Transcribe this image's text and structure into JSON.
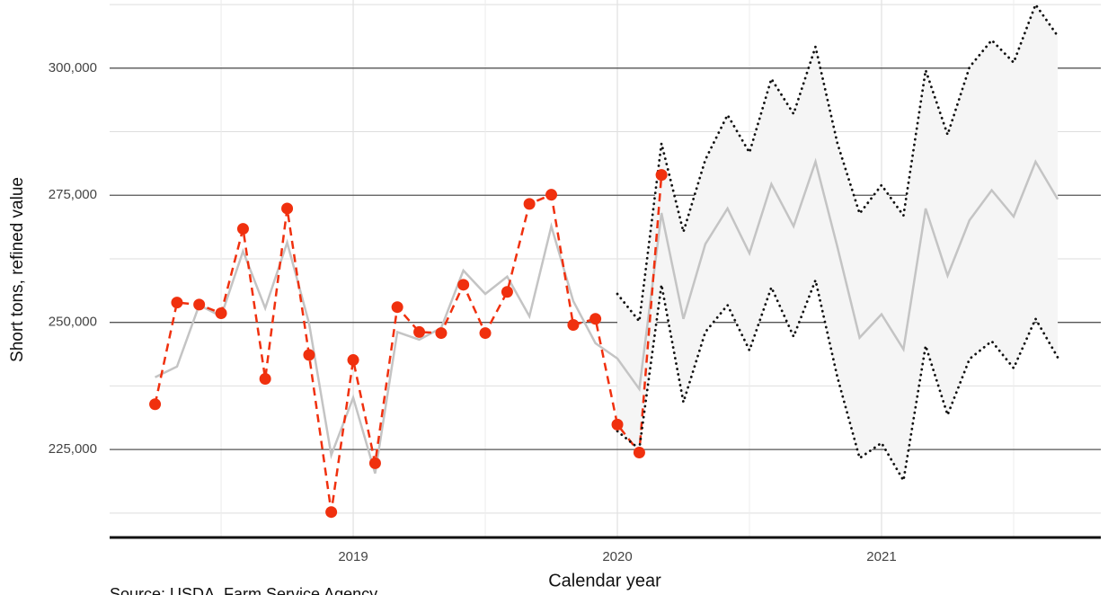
{
  "chart_data": {
    "type": "line",
    "y_label": "Short tons, refined value",
    "x_label": "Calendar year",
    "source": "Source: USDA, Farm Service Agency",
    "xlim": [
      2018.078,
      2021.83
    ],
    "xticks": [
      2019,
      2020,
      2021
    ],
    "x_minor_ticks": [
      2018.5,
      2019.5,
      2020.5,
      2021.5
    ],
    "ylim": [
      207700,
      313400
    ],
    "yticks": [
      {
        "value": 225000,
        "label": "225,000"
      },
      {
        "value": 250000,
        "label": "250,000"
      },
      {
        "value": 275000,
        "label": "275,000"
      },
      {
        "value": 300000,
        "label": "300,000"
      }
    ],
    "y_minor_ticks": [
      212500,
      237500,
      262500,
      287500,
      312500
    ],
    "grid": true,
    "band": {
      "color": "#f5f5f5",
      "line_color": "#111111",
      "x": [
        2020.0,
        2020.083,
        2020.167,
        2020.25,
        2020.333,
        2020.417,
        2020.5,
        2020.583,
        2020.667,
        2020.75,
        2020.833,
        2020.917,
        2021.0,
        2021.083,
        2021.167,
        2021.25,
        2021.333,
        2021.417,
        2021.5,
        2021.583,
        2021.667
      ],
      "upper": [
        255600,
        250200,
        285200,
        267800,
        282000,
        290800,
        283400,
        297900,
        291000,
        304200,
        285200,
        271400,
        277000,
        271000,
        299600,
        286900,
        300200,
        305500,
        301100,
        312500,
        306300
      ],
      "lower": [
        228600,
        225100,
        257400,
        234300,
        248100,
        253400,
        244500,
        256900,
        247200,
        258300,
        239200,
        223300,
        226300,
        218900,
        245400,
        231800,
        242800,
        246300,
        241000,
        250700,
        243100
      ]
    },
    "series": [
      {
        "color": "#c4c4c4",
        "style": "solid",
        "points": false,
        "x": [
          2018.25,
          2018.333,
          2018.417,
          2018.5,
          2018.583,
          2018.667,
          2018.75,
          2018.833,
          2018.917,
          2019.0,
          2019.083,
          2019.167,
          2019.25,
          2019.333,
          2019.417,
          2019.5,
          2019.583,
          2019.667,
          2019.75,
          2019.833,
          2019.917,
          2020.0,
          2020.083,
          2020.167,
          2020.25,
          2020.333,
          2020.417,
          2020.5,
          2020.583,
          2020.667,
          2020.75,
          2020.833,
          2020.917,
          2021.0,
          2021.083,
          2021.167,
          2021.25,
          2021.333,
          2021.417,
          2021.5,
          2021.583,
          2021.667
        ],
        "values": [
          239200,
          241300,
          253400,
          251200,
          264000,
          252800,
          265700,
          249800,
          223900,
          235200,
          220300,
          248100,
          246600,
          248900,
          260200,
          255600,
          259000,
          251200,
          268900,
          254200,
          245900,
          242900,
          236900,
          271500,
          250700,
          265400,
          272400,
          263600,
          277200,
          268900,
          281600,
          264800,
          247000,
          251600,
          244700,
          272400,
          259200,
          270100,
          276000,
          270800,
          281600,
          274200
        ]
      },
      {
        "color": "#f0300e",
        "style": "dashed",
        "points": true,
        "x": [
          2018.25,
          2018.333,
          2018.417,
          2018.5,
          2018.583,
          2018.667,
          2018.75,
          2018.833,
          2018.917,
          2019.0,
          2019.083,
          2019.167,
          2019.25,
          2019.333,
          2019.417,
          2019.5,
          2019.583,
          2019.667,
          2019.75,
          2019.833,
          2019.917,
          2020.0,
          2020.083,
          2020.167
        ],
        "values": [
          233900,
          253900,
          253500,
          251800,
          268400,
          238900,
          272400,
          243600,
          212700,
          242600,
          222300,
          253000,
          248100,
          247900,
          257400,
          247900,
          256000,
          273300,
          275100,
          249500,
          250700,
          229900,
          224400,
          279000
        ]
      }
    ]
  }
}
